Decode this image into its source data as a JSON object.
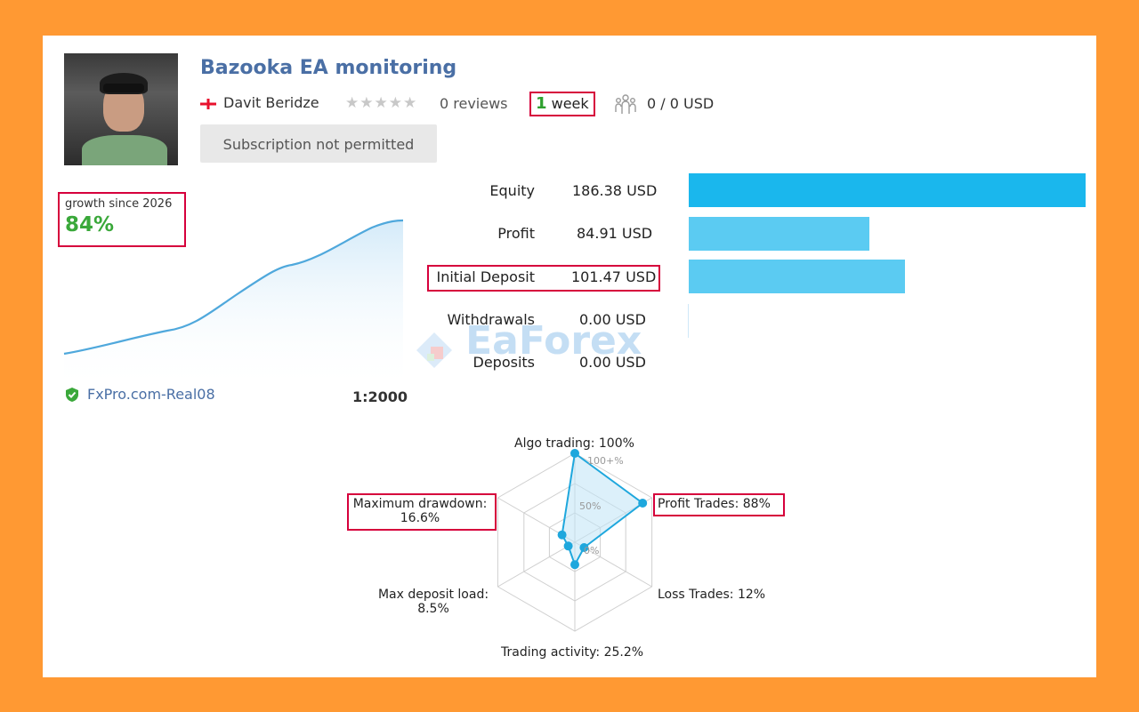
{
  "header": {
    "title": "Bazooka EA monitoring",
    "author": "Davit Beridze",
    "stars": "★★★★★",
    "reviews": "0 reviews",
    "age_number": "1",
    "age_unit": "week",
    "subscribers": "0 / 0 USD",
    "subscribe_button": "Subscription not permitted"
  },
  "growth": {
    "label": "growth since 2026",
    "value": "84%"
  },
  "account": {
    "broker": "FxPro.com-Real08",
    "leverage": "1:2000"
  },
  "stats": [
    {
      "label": "Equity",
      "value": "186.38 USD",
      "amount": 186.38
    },
    {
      "label": "Profit",
      "value": "84.91 USD",
      "amount": 84.91
    },
    {
      "label": "Initial Deposit",
      "value": "101.47 USD",
      "amount": 101.47
    },
    {
      "label": "Withdrawals",
      "value": "0.00 USD",
      "amount": 0.0
    },
    {
      "label": "Deposits",
      "value": "0.00 USD",
      "amount": 0.0
    }
  ],
  "radar": {
    "algo": "Algo trading: 100%",
    "profit_trades": "Profit Trades: 88%",
    "loss_trades": "Loss Trades: 12%",
    "trading_activity": "Trading activity: 25.2%",
    "max_deposit_load_1": "Max deposit load:",
    "max_deposit_load_2": "8.5%",
    "max_drawdown_1": "Maximum drawdown:",
    "max_drawdown_2": "16.6%",
    "tick_100": "100+%",
    "tick_50": "50%",
    "tick_0": "0%",
    "values": [
      100,
      88,
      12,
      25.2,
      8.5,
      16.6
    ]
  },
  "watermark": "EaForex",
  "colors": {
    "accent": "#4a6fa5",
    "bar_equity": "#1ab7ed",
    "bar_other": "#5bcbf2",
    "growth_green": "#3aa83a",
    "highlight_red": "#d6003c",
    "frame_orange": "#ff9933"
  }
}
